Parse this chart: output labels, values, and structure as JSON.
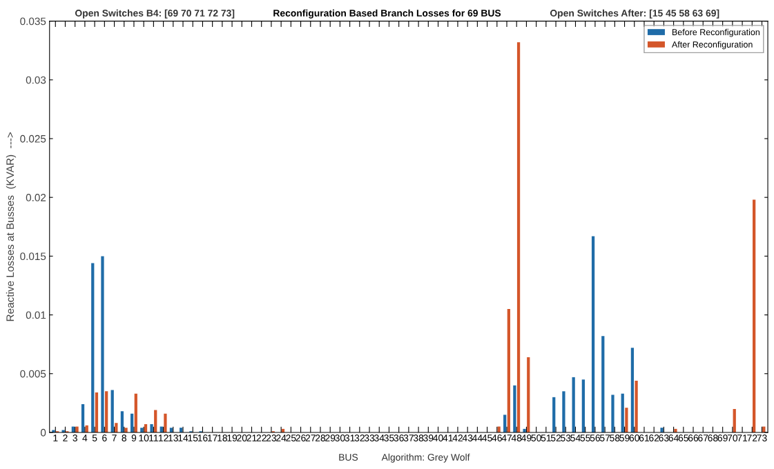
{
  "chart_data": {
    "type": "bar",
    "title": "Reconfiguration Based Branch Losses for 69 BUS",
    "xlabel": "BUS",
    "ylabel": "Reactive Losses at Busses  (KVAR)  --->",
    "annotations": [
      "Open Switches B4: [69 70 71 72 73]",
      "Open Switches After: [15 45 58 63 69]",
      "Algorithm: Grey Wolf"
    ],
    "categories": [
      "1",
      "2",
      "3",
      "4",
      "5",
      "6",
      "7",
      "8",
      "9",
      "10",
      "11",
      "12",
      "13",
      "14",
      "15",
      "16",
      "17",
      "18",
      "19",
      "20",
      "21",
      "22",
      "23",
      "24",
      "25",
      "26",
      "27",
      "28",
      "29",
      "30",
      "31",
      "32",
      "33",
      "34",
      "35",
      "36",
      "37",
      "38",
      "39",
      "40",
      "41",
      "42",
      "43",
      "44",
      "45",
      "46",
      "47",
      "48",
      "49",
      "50",
      "51",
      "52",
      "53",
      "54",
      "55",
      "56",
      "57",
      "58",
      "59",
      "60",
      "61",
      "62",
      "63",
      "64",
      "65",
      "66",
      "67",
      "68",
      "69",
      "70",
      "71",
      "72",
      "73"
    ],
    "series": [
      {
        "name": "Before Reconfiguration",
        "color": "#1f6ca8",
        "values": [
          0.0002,
          0.0002,
          0.0005,
          0.0024,
          0.0144,
          0.015,
          0.0036,
          0.0018,
          0.0016,
          0.0004,
          0.0007,
          0.0005,
          0.0004,
          0.0004,
          0.0001,
          0.0001,
          0,
          0,
          0,
          0,
          0,
          0,
          0,
          0,
          0,
          0,
          0,
          0,
          0,
          0,
          0,
          0,
          0,
          0,
          0,
          0,
          0,
          0,
          0,
          0,
          0,
          0,
          0,
          0,
          0,
          0,
          0.0015,
          0.004,
          0.0003,
          0,
          0,
          0.003,
          0.0035,
          0.0047,
          0.0045,
          0.0167,
          0.0082,
          0.0032,
          0.0033,
          0.0072,
          0,
          0,
          0.0004,
          0,
          0,
          0,
          0,
          0,
          0,
          0,
          0,
          0,
          0
        ]
      },
      {
        "name": "After Reconfiguration",
        "color": "#d4562a",
        "values": [
          0.0001,
          0.0001,
          0.0005,
          0.0006,
          0.0034,
          0.0035,
          0.0008,
          0.0004,
          0.0033,
          0.0007,
          0.0019,
          0.0016,
          0,
          0,
          0,
          0,
          0,
          0,
          0,
          0,
          0,
          0,
          0.0001,
          0.0003,
          0,
          0,
          0,
          0,
          0,
          0,
          0,
          0,
          0,
          0,
          0,
          0,
          0,
          0,
          0,
          0,
          0,
          0,
          0,
          0,
          0,
          0.0005,
          0.0105,
          0.0332,
          0.0064,
          0,
          0,
          0,
          0,
          0,
          0,
          0,
          0,
          0,
          0.0021,
          0.0044,
          0,
          0,
          0,
          0.0003,
          0,
          0,
          0,
          0,
          0,
          0.002,
          0,
          0.0198,
          0.0005
        ]
      }
    ],
    "ylim": [
      0,
      0.035
    ],
    "yticks": [
      0,
      0.005,
      0.01,
      0.015,
      0.02,
      0.025,
      0.03,
      0.035
    ],
    "grid": false,
    "legend": "top right"
  }
}
